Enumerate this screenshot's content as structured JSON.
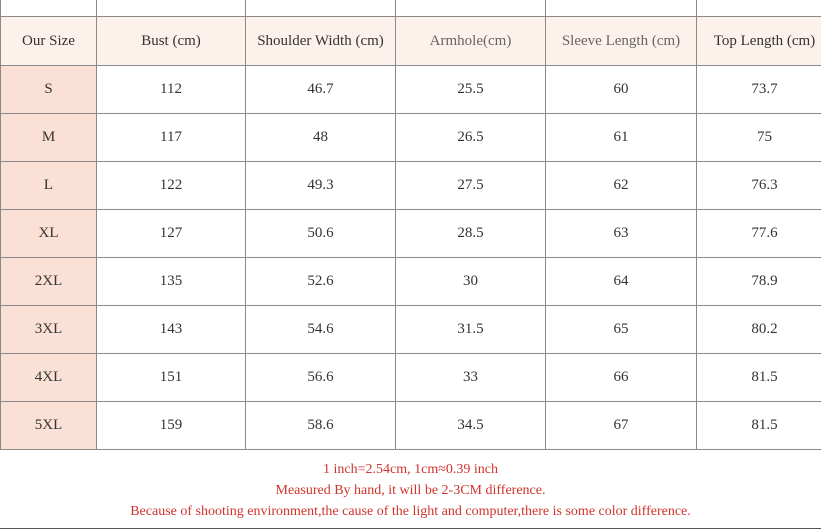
{
  "table": {
    "headers": {
      "size": "Our Size",
      "bust": "Bust (cm)",
      "shoulder": "Shoulder Width (cm)",
      "armhole": "Armhole(cm)",
      "sleeve": "Sleeve Length (cm)",
      "length": "Top Length (cm)"
    },
    "rows": [
      {
        "size": "S",
        "bust": "112",
        "shoulder": "46.7",
        "armhole": "25.5",
        "sleeve": "60",
        "length": "73.7"
      },
      {
        "size": "M",
        "bust": "117",
        "shoulder": "48",
        "armhole": "26.5",
        "sleeve": "61",
        "length": "75"
      },
      {
        "size": "L",
        "bust": "122",
        "shoulder": "49.3",
        "armhole": "27.5",
        "sleeve": "62",
        "length": "76.3"
      },
      {
        "size": "XL",
        "bust": "127",
        "shoulder": "50.6",
        "armhole": "28.5",
        "sleeve": "63",
        "length": "77.6"
      },
      {
        "size": "2XL",
        "bust": "135",
        "shoulder": "52.6",
        "armhole": "30",
        "sleeve": "64",
        "length": "78.9"
      },
      {
        "size": "3XL",
        "bust": "143",
        "shoulder": "54.6",
        "armhole": "31.5",
        "sleeve": "65",
        "length": "80.2"
      },
      {
        "size": "4XL",
        "bust": "151",
        "shoulder": "56.6",
        "armhole": "33",
        "sleeve": "66",
        "length": "81.5"
      },
      {
        "size": "5XL",
        "bust": "159",
        "shoulder": "58.6",
        "armhole": "34.5",
        "sleeve": "67",
        "length": "81.5"
      }
    ]
  },
  "notes": {
    "line1": "1 inch=2.54cm, 1cm≈0.39 inch",
    "line2": "Measured By hand, it will be 2-3CM difference.",
    "line3": "Because of shooting environment,the cause of the light and computer,there is some color difference."
  },
  "colors": {
    "size_cell_bg": "#fbe0d6",
    "header_bg": "#fdf1ec",
    "note_text": "#d0342c"
  }
}
